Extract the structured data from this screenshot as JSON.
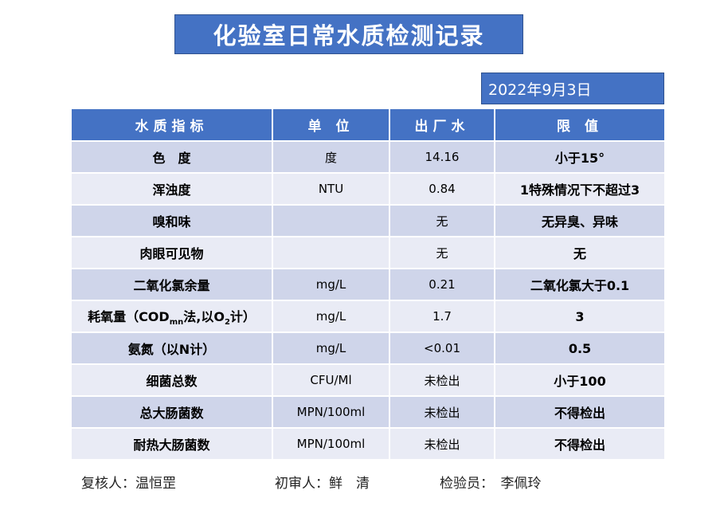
{
  "title": "化验室日常水质检测记录",
  "date": "2022年9月3日",
  "headers": [
    "水质指标",
    "单 位",
    "出厂水",
    "限 值"
  ],
  "rows": [
    {
      "name": "色　度",
      "unit": "度",
      "value": "14.16",
      "limit": "小于15°"
    },
    {
      "name": "浑浊度",
      "unit": "NTU",
      "value": "0.84",
      "limit": "1特殊情况下不超过3"
    },
    {
      "name": "嗅和味",
      "unit": "",
      "value": "无",
      "limit": "无异臭、异味"
    },
    {
      "name": "肉眼可见物",
      "unit": "",
      "value": "无",
      "limit": "无"
    },
    {
      "name": "二氧化氯余量",
      "unit": "mg/L",
      "value": "0.21",
      "limit": "二氧化氯大于0.1"
    },
    {
      "name_parts": {
        "a": "耗氧量（COD",
        "sub1": "mn",
        "b": "法,以O",
        "sub2": "2",
        "c": "计）"
      },
      "unit": "mg/L",
      "value": "1.7",
      "limit": "3"
    },
    {
      "name": "氨氮（以N计）",
      "unit": "mg/L",
      "value": "<0.01",
      "limit": "0.5"
    },
    {
      "name": "细菌总数",
      "unit": "CFU/Ml",
      "value": "未检出",
      "limit": "小于100"
    },
    {
      "name": "总大肠菌数",
      "unit": "MPN/100ml",
      "value": "未检出",
      "limit": "不得检出"
    },
    {
      "name": "耐热大肠菌数",
      "unit": "MPN/100ml",
      "value": "未检出",
      "limit": "不得检出"
    }
  ],
  "footer": {
    "reviewer": "复核人：温恒罡",
    "first_reviewer": "初审人：鲜　清",
    "inspector": "检验员：　李佩玲"
  }
}
